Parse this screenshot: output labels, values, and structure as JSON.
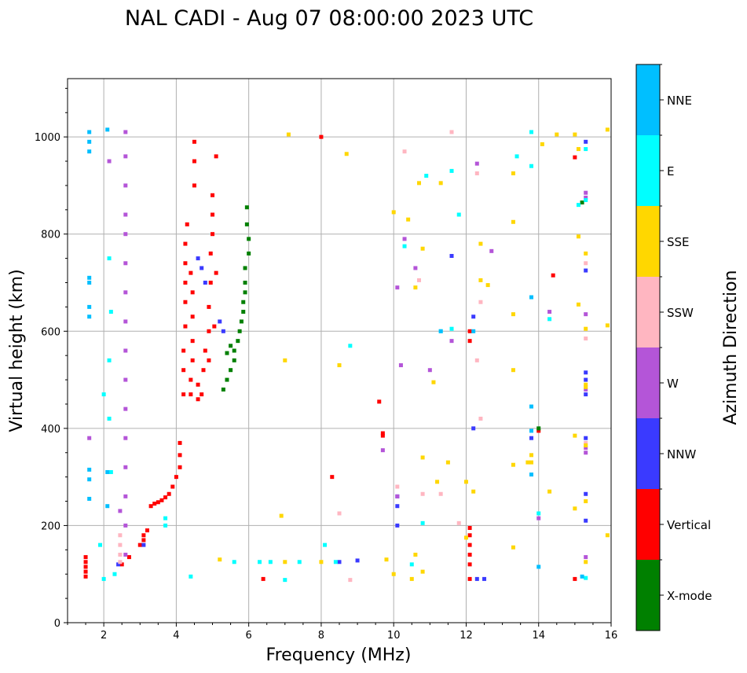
{
  "chart_data": {
    "type": "scatter",
    "title": "NAL CADI - Aug 07 08:00:00 2023 UTC",
    "xlabel": "Frequency (MHz)",
    "ylabel": "Virtual height (km)",
    "xlim": [
      1,
      16
    ],
    "ylim": [
      0,
      1120
    ],
    "xticks": [
      2,
      4,
      6,
      8,
      10,
      12,
      14,
      16
    ],
    "yticks": [
      0,
      200,
      400,
      600,
      800,
      1000
    ],
    "grid": true,
    "colorbar": {
      "label": "Azimuth Direction",
      "categories": [
        {
          "name": "X-mode",
          "color": "#008000"
        },
        {
          "name": "Vertical",
          "color": "#ff0000"
        },
        {
          "name": "NNW",
          "color": "#3a3aff"
        },
        {
          "name": "W",
          "color": "#b455d8"
        },
        {
          "name": "SSW",
          "color": "#ffb6c1"
        },
        {
          "name": "SSE",
          "color": "#ffd700"
        },
        {
          "name": "E",
          "color": "#00ffff"
        },
        {
          "name": "NNE",
          "color": "#00bfff"
        }
      ]
    },
    "series": [
      {
        "name": "Vertical",
        "points": [
          [
            1.5,
            95
          ],
          [
            1.5,
            105
          ],
          [
            1.5,
            115
          ],
          [
            1.5,
            125
          ],
          [
            1.5,
            135
          ],
          [
            2.5,
            120
          ],
          [
            2.7,
            135
          ],
          [
            3.0,
            160
          ],
          [
            3.1,
            170
          ],
          [
            3.1,
            180
          ],
          [
            3.2,
            190
          ],
          [
            3.3,
            240
          ],
          [
            3.4,
            245
          ],
          [
            3.5,
            248
          ],
          [
            3.6,
            252
          ],
          [
            3.7,
            258
          ],
          [
            3.8,
            265
          ],
          [
            3.9,
            280
          ],
          [
            4.0,
            300
          ],
          [
            4.1,
            320
          ],
          [
            4.1,
            345
          ],
          [
            4.1,
            370
          ],
          [
            4.2,
            470
          ],
          [
            4.2,
            520
          ],
          [
            4.2,
            560
          ],
          [
            4.25,
            610
          ],
          [
            4.25,
            660
          ],
          [
            4.25,
            700
          ],
          [
            4.25,
            740
          ],
          [
            4.25,
            780
          ],
          [
            4.3,
            820
          ],
          [
            4.4,
            470
          ],
          [
            4.4,
            500
          ],
          [
            4.45,
            540
          ],
          [
            4.45,
            580
          ],
          [
            4.45,
            630
          ],
          [
            4.45,
            680
          ],
          [
            4.4,
            720
          ],
          [
            4.5,
            900
          ],
          [
            4.5,
            950
          ],
          [
            4.5,
            990
          ],
          [
            4.6,
            460
          ],
          [
            4.6,
            490
          ],
          [
            4.7,
            470
          ],
          [
            4.75,
            520
          ],
          [
            4.8,
            560
          ],
          [
            4.9,
            540
          ],
          [
            4.9,
            600
          ],
          [
            4.9,
            650
          ],
          [
            4.95,
            700
          ],
          [
            4.95,
            760
          ],
          [
            5.0,
            800
          ],
          [
            5.0,
            840
          ],
          [
            5.0,
            880
          ],
          [
            5.1,
            720
          ],
          [
            5.05,
            610
          ],
          [
            5.1,
            960
          ],
          [
            9.6,
            455
          ],
          [
            9.7,
            385
          ],
          [
            9.7,
            390
          ],
          [
            8.3,
            300
          ],
          [
            8.0,
            1000
          ],
          [
            6.4,
            90
          ],
          [
            12.1,
            580
          ],
          [
            12.1,
            600
          ],
          [
            12.1,
            120
          ],
          [
            12.1,
            140
          ],
          [
            12.1,
            160
          ],
          [
            12.1,
            180
          ],
          [
            12.1,
            195
          ],
          [
            12.1,
            90
          ],
          [
            14.0,
            395
          ],
          [
            15.0,
            958
          ],
          [
            15.0,
            90
          ],
          [
            14.4,
            715
          ]
        ]
      },
      {
        "name": "X-mode",
        "points": [
          [
            5.3,
            480
          ],
          [
            5.4,
            500
          ],
          [
            5.5,
            520
          ],
          [
            5.6,
            540
          ],
          [
            5.6,
            560
          ],
          [
            5.7,
            580
          ],
          [
            5.75,
            600
          ],
          [
            5.8,
            620
          ],
          [
            5.85,
            640
          ],
          [
            5.85,
            660
          ],
          [
            5.9,
            680
          ],
          [
            5.9,
            700
          ],
          [
            5.9,
            730
          ],
          [
            6.0,
            760
          ],
          [
            6.0,
            790
          ],
          [
            5.95,
            820
          ],
          [
            5.95,
            855
          ],
          [
            5.5,
            570
          ],
          [
            5.4,
            555
          ],
          [
            14.0,
            400
          ],
          [
            15.2,
            865
          ]
        ]
      },
      {
        "name": "NNW",
        "points": [
          [
            4.6,
            750
          ],
          [
            4.7,
            730
          ],
          [
            4.8,
            700
          ],
          [
            5.2,
            620
          ],
          [
            5.3,
            600
          ],
          [
            3.1,
            160
          ],
          [
            2.4,
            120
          ],
          [
            9.0,
            128
          ],
          [
            8.5,
            125
          ],
          [
            12.5,
            90
          ],
          [
            12.3,
            90
          ],
          [
            15.3,
            990
          ],
          [
            15.3,
            725
          ],
          [
            15.3,
            515
          ],
          [
            15.3,
            500
          ],
          [
            15.3,
            470
          ],
          [
            15.3,
            380
          ],
          [
            15.3,
            265
          ],
          [
            15.3,
            210
          ],
          [
            13.8,
            380
          ],
          [
            11.6,
            755
          ],
          [
            12.2,
            630
          ],
          [
            10.1,
            260
          ],
          [
            10.1,
            240
          ],
          [
            10.1,
            200
          ],
          [
            12.2,
            400
          ]
        ]
      },
      {
        "name": "W",
        "points": [
          [
            2.6,
            1010
          ],
          [
            2.6,
            960
          ],
          [
            2.6,
            900
          ],
          [
            2.6,
            840
          ],
          [
            2.6,
            800
          ],
          [
            2.6,
            740
          ],
          [
            2.6,
            680
          ],
          [
            2.6,
            620
          ],
          [
            2.6,
            560
          ],
          [
            2.6,
            500
          ],
          [
            2.6,
            440
          ],
          [
            2.6,
            380
          ],
          [
            2.6,
            320
          ],
          [
            2.6,
            260
          ],
          [
            2.6,
            200
          ],
          [
            2.6,
            140
          ],
          [
            2.45,
            230
          ],
          [
            1.6,
            380
          ],
          [
            2.15,
            950
          ],
          [
            15.3,
            885
          ],
          [
            15.3,
            875
          ],
          [
            15.3,
            635
          ],
          [
            15.3,
            480
          ],
          [
            15.3,
            360
          ],
          [
            15.3,
            350
          ],
          [
            15.3,
            135
          ],
          [
            12.7,
            765
          ],
          [
            12.3,
            945
          ],
          [
            10.3,
            790
          ],
          [
            10.6,
            730
          ],
          [
            10.1,
            690
          ],
          [
            11.6,
            580
          ],
          [
            10.2,
            530
          ],
          [
            11.0,
            520
          ],
          [
            10.1,
            260
          ],
          [
            9.7,
            355
          ],
          [
            14.3,
            640
          ],
          [
            14.0,
            215
          ]
        ]
      },
      {
        "name": "SSW",
        "points": [
          [
            2.45,
            180
          ],
          [
            2.45,
            160
          ],
          [
            2.45,
            140
          ],
          [
            2.45,
            125
          ],
          [
            15.3,
            740
          ],
          [
            15.3,
            585
          ],
          [
            15.3,
            370
          ],
          [
            12.3,
            925
          ],
          [
            11.6,
            1010
          ],
          [
            10.3,
            970
          ],
          [
            10.7,
            705
          ],
          [
            12.4,
            660
          ],
          [
            12.3,
            540
          ],
          [
            12.4,
            420
          ],
          [
            10.1,
            280
          ],
          [
            8.5,
            225
          ],
          [
            8.8,
            88
          ],
          [
            10.8,
            265
          ],
          [
            11.3,
            265
          ],
          [
            11.8,
            205
          ]
        ]
      },
      {
        "name": "SSE",
        "points": [
          [
            15.0,
            1005
          ],
          [
            15.1,
            975
          ],
          [
            15.1,
            795
          ],
          [
            15.3,
            760
          ],
          [
            15.1,
            655
          ],
          [
            15.3,
            605
          ],
          [
            15.3,
            490
          ],
          [
            15.3,
            485
          ],
          [
            15.3,
            365
          ],
          [
            15.0,
            385
          ],
          [
            15.3,
            250
          ],
          [
            15.0,
            235
          ],
          [
            15.3,
            125
          ],
          [
            14.5,
            1005
          ],
          [
            14.1,
            985
          ],
          [
            13.3,
            925
          ],
          [
            13.3,
            825
          ],
          [
            12.4,
            780
          ],
          [
            12.4,
            705
          ],
          [
            12.6,
            695
          ],
          [
            13.3,
            635
          ],
          [
            13.3,
            520
          ],
          [
            13.8,
            345
          ],
          [
            13.8,
            330
          ],
          [
            14.3,
            270
          ],
          [
            13.3,
            155
          ],
          [
            13.3,
            325
          ],
          [
            12.2,
            270
          ],
          [
            12.0,
            175
          ],
          [
            12.0,
            290
          ],
          [
            11.3,
            905
          ],
          [
            10.7,
            905
          ],
          [
            10.4,
            830
          ],
          [
            10.0,
            845
          ],
          [
            8.7,
            965
          ],
          [
            8.5,
            530
          ],
          [
            10.8,
            770
          ],
          [
            10.8,
            340
          ],
          [
            10.6,
            140
          ],
          [
            10.5,
            90
          ],
          [
            9.8,
            130
          ],
          [
            10.0,
            100
          ],
          [
            7.1,
            1005
          ],
          [
            7.0,
            540
          ],
          [
            6.9,
            220
          ],
          [
            5.2,
            130
          ],
          [
            7.0,
            125
          ],
          [
            8.0,
            125
          ],
          [
            10.6,
            690
          ],
          [
            11.1,
            495
          ],
          [
            11.5,
            330
          ],
          [
            11.2,
            290
          ],
          [
            10.8,
            105
          ],
          [
            13.7,
            330
          ],
          [
            15.9,
            180
          ],
          [
            15.9,
            1015
          ],
          [
            15.9,
            612
          ]
        ]
      },
      {
        "name": "E",
        "points": [
          [
            2.0,
            470
          ],
          [
            2.15,
            750
          ],
          [
            2.2,
            640
          ],
          [
            2.15,
            540
          ],
          [
            2.15,
            420
          ],
          [
            2.2,
            310
          ],
          [
            2.3,
            100
          ],
          [
            2.0,
            90
          ],
          [
            1.9,
            160
          ],
          [
            3.7,
            215
          ],
          [
            3.7,
            200
          ],
          [
            4.4,
            95
          ],
          [
            5.6,
            125
          ],
          [
            6.3,
            125
          ],
          [
            6.6,
            125
          ],
          [
            7.0,
            88
          ],
          [
            7.4,
            125
          ],
          [
            8.8,
            570
          ],
          [
            8.1,
            160
          ],
          [
            8.4,
            125
          ],
          [
            10.5,
            120
          ],
          [
            10.8,
            205
          ],
          [
            10.9,
            920
          ],
          [
            11.3,
            600
          ],
          [
            11.6,
            605
          ],
          [
            11.6,
            930
          ],
          [
            13.4,
            960
          ],
          [
            13.8,
            940
          ],
          [
            13.8,
            1010
          ],
          [
            15.3,
            975
          ],
          [
            15.3,
            870
          ],
          [
            15.1,
            860
          ],
          [
            15.3,
            92
          ],
          [
            14.0,
            225
          ],
          [
            14.3,
            625
          ],
          [
            10.3,
            775
          ],
          [
            11.8,
            840
          ]
        ]
      },
      {
        "name": "NNE",
        "points": [
          [
            1.6,
            1010
          ],
          [
            1.6,
            990
          ],
          [
            1.6,
            970
          ],
          [
            1.6,
            710
          ],
          [
            1.6,
            700
          ],
          [
            1.6,
            650
          ],
          [
            1.6,
            630
          ],
          [
            1.6,
            315
          ],
          [
            1.6,
            295
          ],
          [
            1.6,
            255
          ],
          [
            2.1,
            1015
          ],
          [
            2.1,
            310
          ],
          [
            2.1,
            240
          ],
          [
            13.8,
            670
          ],
          [
            13.8,
            445
          ],
          [
            13.8,
            395
          ],
          [
            13.8,
            305
          ],
          [
            14.0,
            115
          ],
          [
            15.2,
            95
          ],
          [
            12.2,
            600
          ],
          [
            11.3,
            600
          ]
        ]
      }
    ]
  }
}
